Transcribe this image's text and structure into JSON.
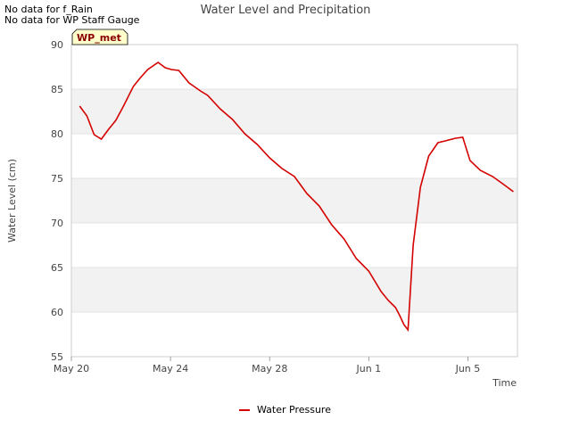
{
  "notes": [
    "No data for f_Rain",
    "No data for WP Staff Gauge"
  ],
  "station_tag": "WP_met",
  "colors": {
    "series": "#d40000",
    "band": "#f2f2f2",
    "grid": "#dddddd",
    "tag_bg": "#ffffcc",
    "tag_text": "#8b0000"
  },
  "chart_data": {
    "type": "line",
    "title": "Water Level and Precipitation",
    "xlabel": "Time",
    "ylabel": "Water Level (cm)",
    "ylim": [
      55,
      90
    ],
    "yticks": [
      55,
      60,
      65,
      70,
      75,
      80,
      85,
      90
    ],
    "xlim": [
      "2024-05-20",
      "2024-06-07"
    ],
    "xticks": [
      {
        "x": "2024-05-20",
        "label": "May 20"
      },
      {
        "x": "2024-05-24",
        "label": "May 24"
      },
      {
        "x": "2024-05-28",
        "label": "May 28"
      },
      {
        "x": "2024-06-01",
        "label": "Jun 1"
      },
      {
        "x": "2024-06-05",
        "label": "Jun 5"
      }
    ],
    "grid": true,
    "legend": "bottom-center",
    "series": [
      {
        "name": "Water Pressure",
        "x": [
          "2024-05-20 08:00",
          "2024-05-20 15:00",
          "2024-05-20 22:00",
          "2024-05-21 05:00",
          "2024-05-21 12:00",
          "2024-05-21 19:00",
          "2024-05-22 02:00",
          "2024-05-22 12:00",
          "2024-05-22 19:00",
          "2024-05-23 02:00",
          "2024-05-23 12:00",
          "2024-05-23 19:00",
          "2024-05-24 01:00",
          "2024-05-24 08:00",
          "2024-05-24 18:00",
          "2024-05-25 05:00",
          "2024-05-25 12:00",
          "2024-05-26 00:00",
          "2024-05-26 12:00",
          "2024-05-27 00:00",
          "2024-05-27 12:00",
          "2024-05-28 00:00",
          "2024-05-28 12:00",
          "2024-05-29 00:00",
          "2024-05-29 12:00",
          "2024-05-30 00:00",
          "2024-05-30 12:00",
          "2024-05-31 00:00",
          "2024-05-31 12:00",
          "2024-06-01 00:00",
          "2024-06-01 12:00",
          "2024-06-01 19:00",
          "2024-06-02 02:00",
          "2024-06-02 06:00",
          "2024-06-02 10:00",
          "2024-06-02 14:00",
          "2024-06-02 19:00",
          "2024-06-03 02:00",
          "2024-06-03 10:00",
          "2024-06-03 19:00",
          "2024-06-04 02:00",
          "2024-06-04 12:00",
          "2024-06-04 19:00",
          "2024-06-05 02:00",
          "2024-06-05 12:00",
          "2024-06-06 00:00",
          "2024-06-06 12:00",
          "2024-06-06 20:00"
        ],
        "y": [
          83.1,
          82.0,
          79.9,
          79.4,
          80.5,
          81.5,
          83.0,
          85.3,
          86.3,
          87.2,
          88.0,
          87.4,
          87.2,
          87.1,
          85.7,
          84.8,
          84.3,
          82.8,
          81.6,
          80.0,
          78.8,
          77.3,
          76.1,
          75.2,
          73.3,
          71.9,
          69.8,
          68.2,
          66.0,
          64.6,
          62.3,
          61.3,
          60.5,
          59.6,
          58.6,
          58.0,
          67.5,
          74.0,
          77.5,
          79.0,
          79.2,
          79.5,
          79.6,
          77.0,
          75.9,
          75.2,
          74.2,
          73.5
        ]
      }
    ]
  }
}
